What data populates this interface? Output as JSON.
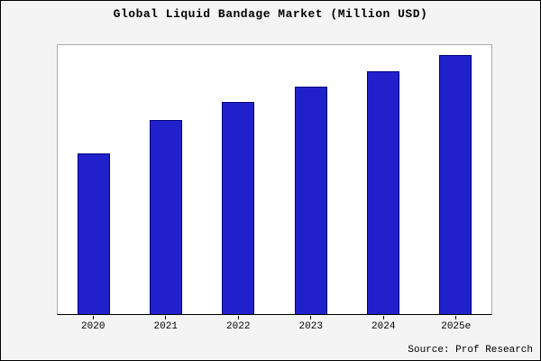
{
  "title": "Global Liquid Bandage Market (Million USD)",
  "source": "Source: Prof Research",
  "colors": {
    "bar": "#2121cc",
    "bar_border": "#00007a",
    "background": "#f4f4f4",
    "plot_background": "#ffffff"
  },
  "chart_data": {
    "type": "bar",
    "categories": [
      "2020",
      "2021",
      "2022",
      "2023",
      "2024",
      "2025e"
    ],
    "values": [
      62,
      75,
      82,
      88,
      94,
      100
    ],
    "title": "Global Liquid Bandage Market (Million USD)",
    "xlabel": "",
    "ylabel": "",
    "ylim": [
      0,
      104
    ],
    "grid": false,
    "legend": false
  }
}
